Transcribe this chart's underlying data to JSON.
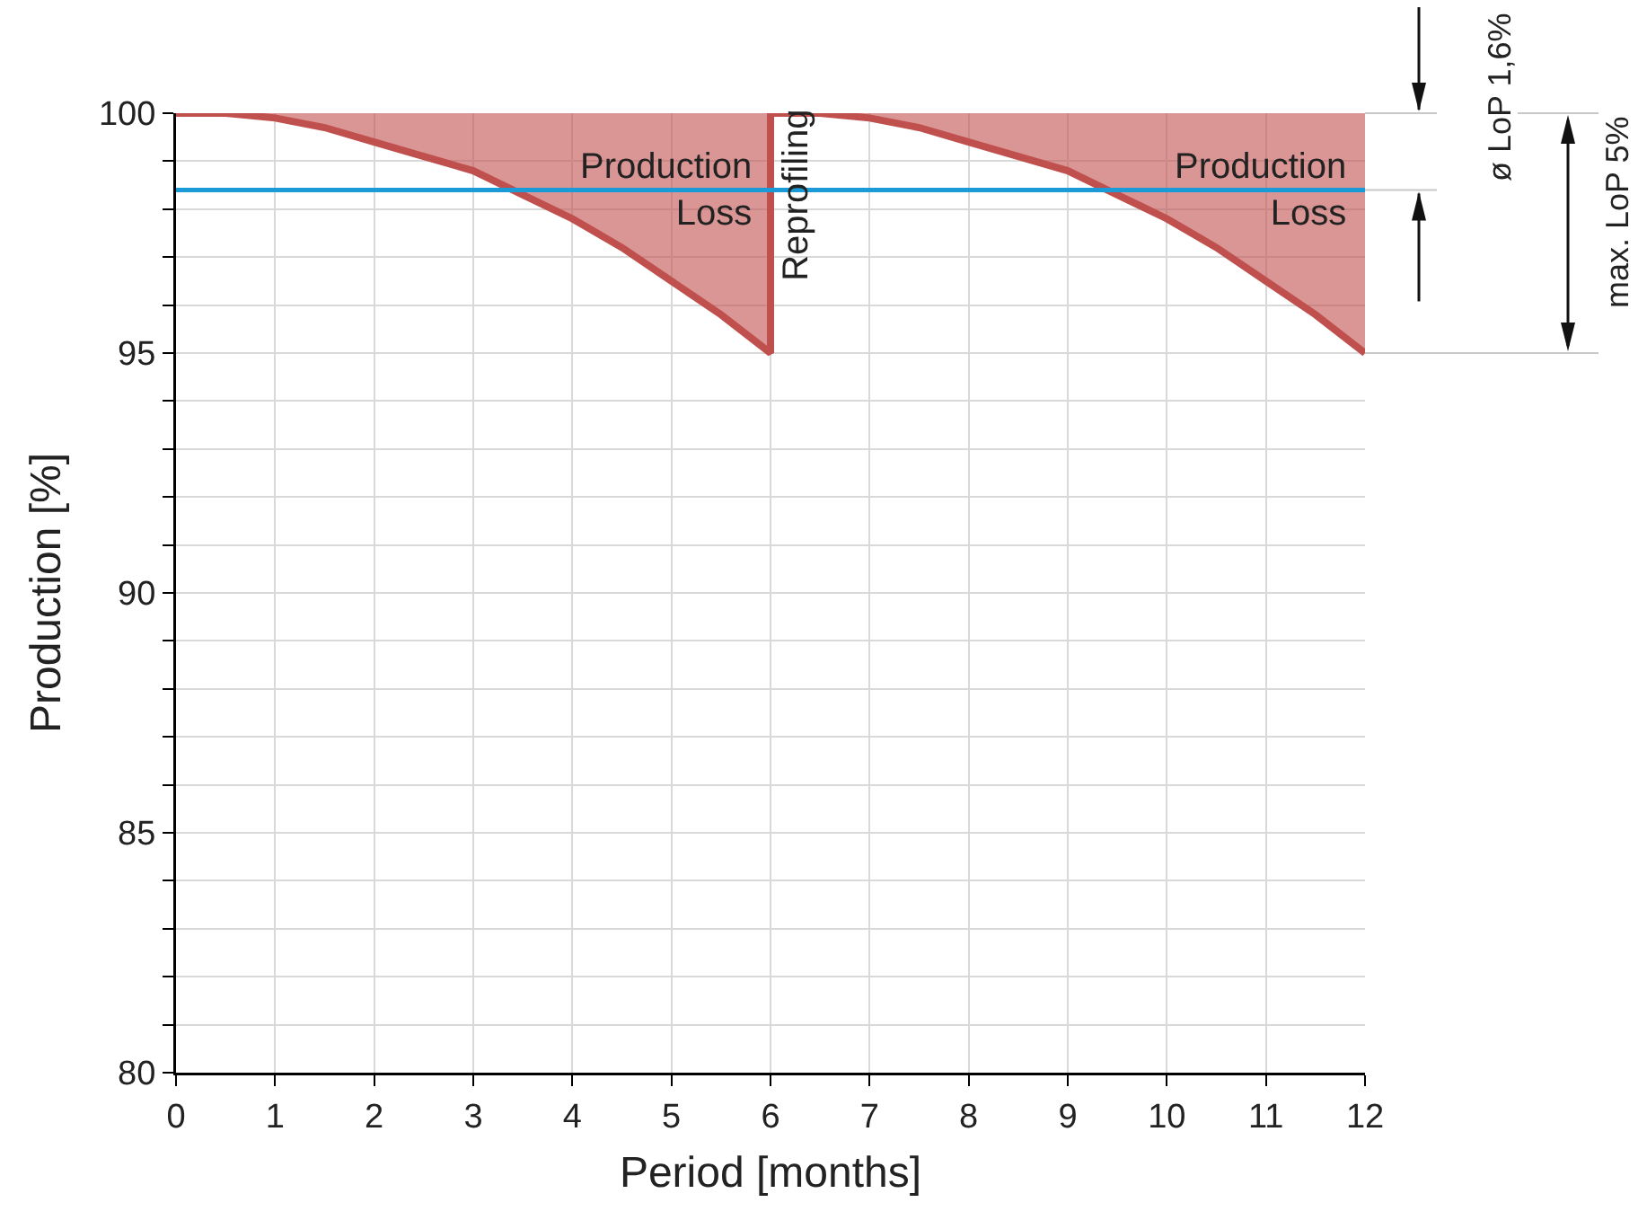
{
  "chart_data": {
    "type": "line",
    "xlabel": "Period [months]",
    "ylabel": "Production [%]",
    "xlim": [
      0,
      12
    ],
    "xticks": [
      0,
      1,
      2,
      3,
      4,
      5,
      6,
      7,
      8,
      9,
      10,
      11,
      12
    ],
    "ylim": [
      80,
      100
    ],
    "yticks": [
      80,
      {
        "value": 81,
        "label": null
      },
      {
        "value": 82,
        "label": null
      },
      {
        "value": 83,
        "label": null
      },
      {
        "value": 84,
        "label": null
      },
      85,
      {
        "value": 86,
        "label": null
      },
      {
        "value": 87,
        "label": null
      },
      {
        "value": 88,
        "label": null
      },
      {
        "value": 89,
        "label": null
      },
      90,
      {
        "value": 91,
        "label": null
      },
      {
        "value": 92,
        "label": null
      },
      {
        "value": 93,
        "label": null
      },
      {
        "value": 94,
        "label": null
      },
      95,
      {
        "value": 96,
        "label": null
      },
      {
        "value": 97,
        "label": null
      },
      {
        "value": 98,
        "label": null
      },
      {
        "value": 99,
        "label": null
      },
      100
    ],
    "grid": true,
    "marker": "none",
    "line_style": "solid",
    "series": [
      {
        "color": "#c0504d",
        "x": [
          0,
          0.5,
          1,
          1.5,
          2,
          2.5,
          3,
          3.5,
          4,
          4.5,
          5,
          5.5,
          6,
          6,
          6.5,
          7,
          7.5,
          8,
          8.5,
          9,
          9.5,
          10,
          10.5,
          11,
          11.5,
          12
        ],
        "values": [
          100,
          100,
          99.9,
          99.7,
          99.4,
          99.1,
          98.8,
          98.3,
          97.8,
          97.2,
          96.5,
          95.8,
          95,
          100,
          100,
          99.9,
          99.7,
          99.4,
          99.1,
          98.8,
          98.3,
          97.8,
          97.2,
          96.5,
          95.8,
          95
        ],
        "lower": [
          100,
          100,
          99.9,
          99.7,
          99.4,
          99.1,
          98.8,
          98.3,
          97.8,
          97.2,
          96.5,
          95.8,
          95,
          100,
          100,
          99.9,
          99.7,
          99.4,
          99.1,
          98.8,
          98.3,
          97.8,
          97.2,
          96.5,
          95.8,
          95
        ],
        "upper": [
          100,
          100,
          100,
          100,
          100,
          100,
          100,
          100,
          100,
          100,
          100,
          100,
          100,
          100,
          100,
          100,
          100,
          100,
          100,
          100,
          100,
          100,
          100,
          100,
          100,
          100
        ]
      }
    ],
    "ref_lines": [
      {
        "axis": "y",
        "value": 98.4,
        "color": "#1a9bd7",
        "line_style": "solid"
      }
    ],
    "annotations": [
      {
        "text": "Production Loss",
        "x": 5.85,
        "y": 98.4
      },
      {
        "text": "Reprofiling",
        "x": 6,
        "y": 98.3
      },
      {
        "text": "Production Loss",
        "x": 11.85,
        "y": 98.4
      },
      "ø LoP 1,6%",
      "max. LoP 5%"
    ]
  }
}
